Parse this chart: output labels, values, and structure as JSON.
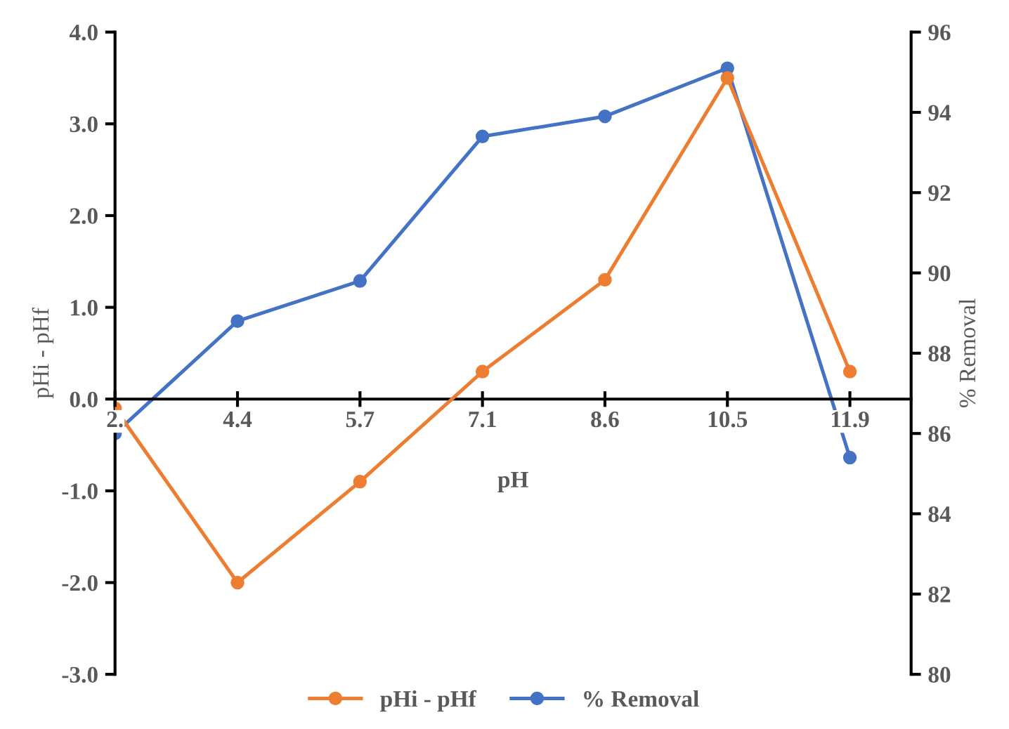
{
  "chart_data": {
    "type": "line",
    "xlabel": "pH",
    "ylabel": "pHi - pHf",
    "y2label": "% Removal",
    "categories": [
      "2.",
      "4.4",
      "5.7",
      "7.1",
      "8.6",
      "10.5",
      "11.9"
    ],
    "series": [
      {
        "name": "pHi - pHf",
        "color": "#ed7d31",
        "values": [
          -0.1,
          -2.0,
          -0.9,
          0.3,
          1.3,
          3.5,
          0.3
        ]
      },
      {
        "name": "% Removal",
        "color": "#4472c4",
        "axis": "y2",
        "values": [
          86.0,
          88.8,
          89.8,
          93.4,
          93.9,
          95.1,
          85.4
        ]
      }
    ],
    "ylim": [
      -3.0,
      4.0
    ],
    "yticks": [
      {
        "value": -3,
        "label": "-3.0"
      },
      {
        "value": -2,
        "label": "-2.0"
      },
      {
        "value": -1,
        "label": "-1.0"
      },
      {
        "value": 0,
        "label": "0.0"
      },
      {
        "value": 1,
        "label": "1.0"
      },
      {
        "value": 2,
        "label": "2.0"
      },
      {
        "value": 3,
        "label": "3.0"
      },
      {
        "value": 4,
        "label": "4.0"
      }
    ],
    "y2lim": [
      80,
      96
    ],
    "y2ticks": [
      80,
      82,
      84,
      86,
      88,
      90,
      92,
      94,
      96
    ],
    "marker": "circle",
    "line_style": "solid",
    "grid": false,
    "legend": "bottom"
  }
}
